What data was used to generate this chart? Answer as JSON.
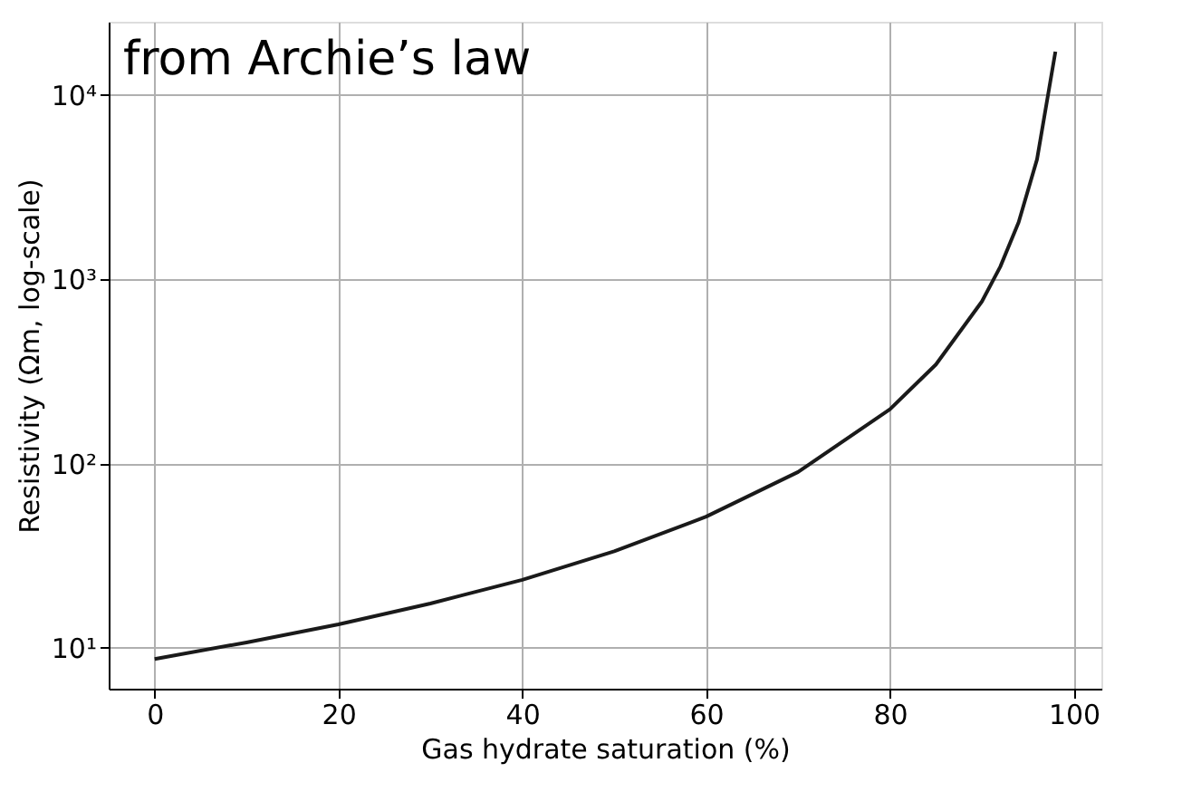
{
  "chart_data": {
    "type": "line",
    "xlabel": "Gas hydrate saturation (%)",
    "ylabel": "Resistivity (Ωm, log-scale)",
    "annotations": [
      "from Archie’s law"
    ],
    "x": [
      0,
      10,
      20,
      30,
      40,
      50,
      60,
      70,
      80,
      85,
      90,
      92,
      94,
      96,
      98
    ],
    "series": [
      {
        "color": "#1a1a1a",
        "values": [
          8.7,
          10.7,
          13.4,
          17.4,
          23.4,
          33.4,
          51.5,
          90,
          197,
          345,
          758,
          1170,
          2040,
          4480,
          17200
        ]
      }
    ],
    "log": "y",
    "grid": true,
    "marker": "none",
    "line_style": "solid",
    "xlim": [
      -5,
      103
    ],
    "xticks": [
      0,
      20,
      40,
      60,
      80,
      100
    ],
    "ylim": [
      6,
      25000
    ],
    "yticks": [
      {
        "value": 10,
        "label": "10¹"
      },
      {
        "value": 100,
        "label": "10²"
      },
      {
        "value": 1000,
        "label": "10³"
      },
      {
        "value": 10000,
        "label": "10⁴"
      }
    ]
  }
}
